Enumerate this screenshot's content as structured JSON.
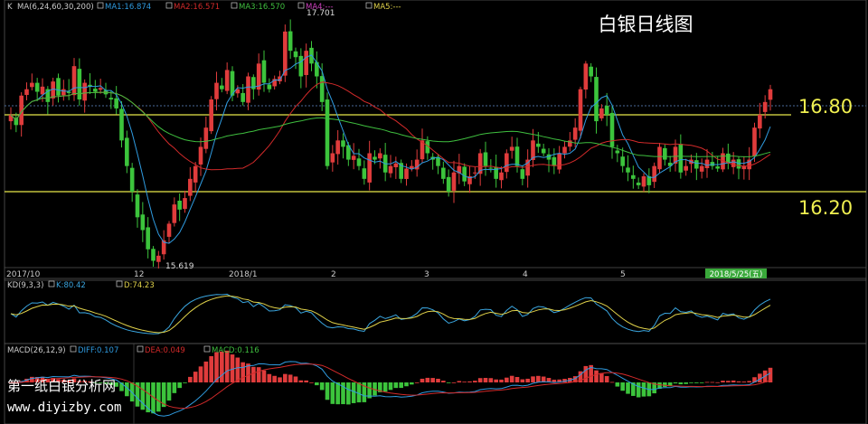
{
  "chart_title": "白银日线图",
  "watermark": {
    "line1": "第一纸白银分析网",
    "line2": "www.diyizby.com"
  },
  "main_panel": {
    "legend": {
      "k": "K",
      "ma": "MA(6,24,60,30,200)",
      "ma1": "MA1:16.874",
      "ma2": "MA2:16.571",
      "ma3": "MA3:16.570",
      "ma4": "MA4:---",
      "ma5": "MA5:---"
    },
    "high_label": "17.701",
    "low_label": "15.619",
    "level_labels": [
      "16.80",
      "16.20"
    ],
    "x_ticks": [
      "2017/10",
      "12",
      "2018/1",
      "2",
      "3",
      "4",
      "5"
    ],
    "date_badge": "2018/5/25(五)"
  },
  "kd_panel": {
    "legend": {
      "name": "KD(9,3,3)",
      "k": "K:80.42",
      "d": "D:74.23"
    }
  },
  "macd_panel": {
    "legend": {
      "name": "MACD(26,12,9)",
      "diff": "DIFF:0.107",
      "dea": "DEA:0.049",
      "macd": "MACD:0.116"
    }
  },
  "colors": {
    "up": "#e03c3c",
    "down": "#3cc43c",
    "ma1": "#2f9be0",
    "ma2": "#d22a2a",
    "ma3": "#3fbf3f",
    "level": "#e8e84a",
    "kd_k": "#3aa6e0",
    "kd_d": "#e0d24a"
  },
  "chart_data": {
    "type": "candlestick",
    "levels": [
      16.8,
      16.2
    ],
    "high": 17.701,
    "low": 15.619,
    "last_indicators": {
      "MA1": 16.874,
      "MA2": 16.571,
      "MA3": 16.57,
      "K": 80.42,
      "D": 74.23,
      "DIFF": 0.107,
      "DEA": 0.049,
      "MACD": 0.116
    },
    "closes": [
      16.8,
      16.72,
      16.95,
      17.0,
      17.05,
      16.98,
      17.02,
      16.9,
      17.06,
      16.95,
      17.0,
      16.97,
      17.18,
      16.92,
      17.05,
      17.02,
      16.98,
      17.01,
      16.96,
      16.92,
      16.85,
      16.6,
      16.4,
      16.2,
      16.0,
      15.9,
      15.75,
      15.66,
      15.7,
      15.82,
      15.95,
      16.1,
      16.06,
      16.15,
      16.3,
      16.4,
      16.55,
      16.7,
      16.92,
      17.05,
      17.0,
      17.15,
      16.95,
      17.0,
      16.9,
      17.1,
      17.0,
      17.2,
      17.05,
      17.0,
      17.08,
      17.1,
      17.45,
      17.3,
      17.25,
      17.1,
      17.3,
      17.2,
      17.1,
      16.9,
      16.4,
      16.5,
      16.6,
      16.55,
      16.45,
      16.48,
      16.4,
      16.3,
      16.5,
      16.45,
      16.5,
      16.35,
      16.4,
      16.42,
      16.3,
      16.38,
      16.4,
      16.45,
      16.6,
      16.5,
      16.45,
      16.4,
      16.3,
      16.2,
      16.35,
      16.4,
      16.28,
      16.32,
      16.35,
      16.5,
      16.4,
      16.38,
      16.3,
      16.35,
      16.5,
      16.55,
      16.4,
      16.3,
      16.45,
      16.6,
      16.55,
      16.5,
      16.45,
      16.4,
      16.5,
      16.55,
      16.6,
      16.7,
      17.0,
      17.2,
      17.1,
      16.75,
      16.85,
      16.8,
      16.55,
      16.5,
      16.4,
      16.35,
      16.3,
      16.25,
      16.32,
      16.25,
      16.4,
      16.55,
      16.45,
      16.4,
      16.55,
      16.35,
      16.4,
      16.45,
      16.38,
      16.4,
      16.45,
      16.4,
      16.38,
      16.5,
      16.42,
      16.45,
      16.38,
      16.4,
      16.45,
      16.7,
      16.8,
      16.9,
      17.0
    ]
  }
}
